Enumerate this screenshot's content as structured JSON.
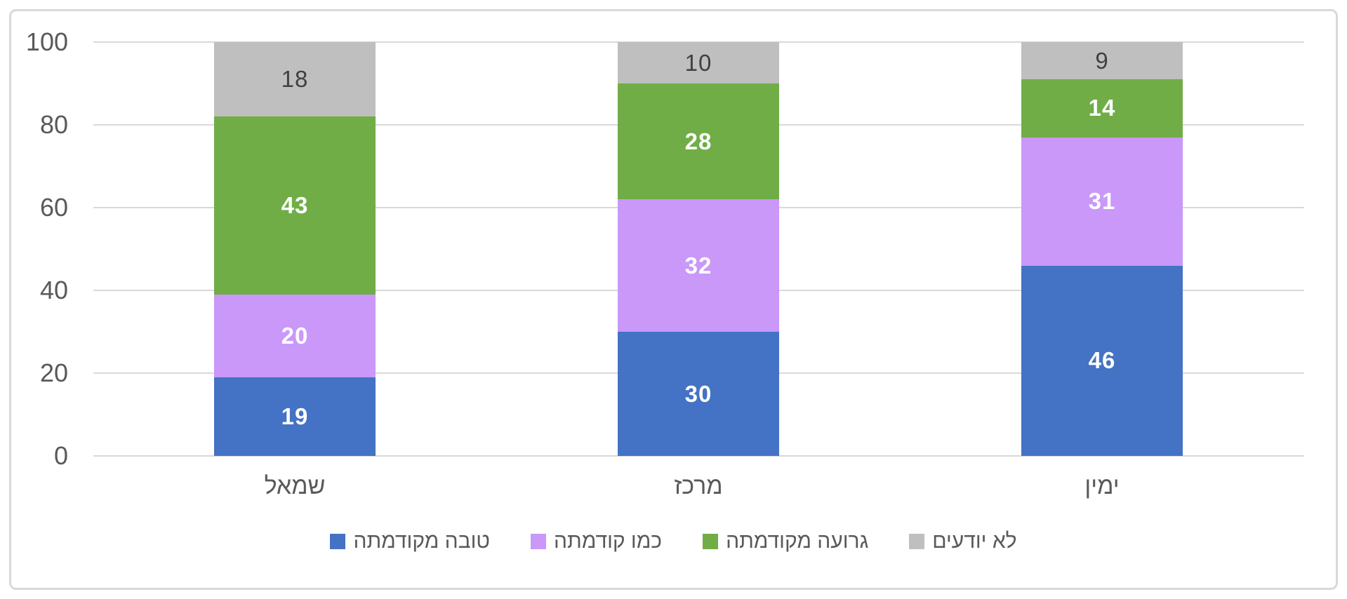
{
  "chart_data": {
    "type": "bar",
    "stacked": true,
    "categories": [
      "שמאל",
      "מרכז",
      "ימין"
    ],
    "series": [
      {
        "name": "טובה מקודמתה",
        "color": "#4472C4",
        "label_color": "#FFFFFF",
        "values": [
          19,
          30,
          46
        ]
      },
      {
        "name": "כמו קודמתה",
        "color": "#C998F9",
        "label_color": "#FFFFFF",
        "values": [
          20,
          32,
          31
        ]
      },
      {
        "name": "גרועה מקודמתה",
        "color": "#70AD47",
        "label_color": "#FFFFFF",
        "values": [
          43,
          28,
          14
        ]
      },
      {
        "name": "לא יודעים",
        "color": "#BFBFBF",
        "label_color": "#404040",
        "values": [
          18,
          10,
          9
        ]
      }
    ],
    "title": "",
    "xlabel": "",
    "ylabel": "",
    "ylim": [
      0,
      100
    ],
    "yticks": [
      0,
      20,
      40,
      60,
      80,
      100
    ],
    "grid": true,
    "legend_position": "bottom",
    "colors": {
      "gridline": "#D9D9D9",
      "axis_text": "#595959",
      "frame_border": "#D9D9D9",
      "background": "#FFFFFF"
    }
  }
}
